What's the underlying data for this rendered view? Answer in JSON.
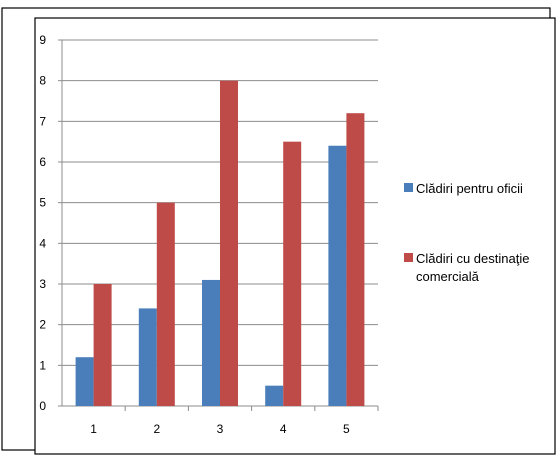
{
  "chart_data": {
    "type": "bar",
    "title": "",
    "xlabel": "",
    "ylabel": "",
    "categories": [
      "1",
      "2",
      "3",
      "4",
      "5"
    ],
    "series": [
      {
        "name": "Clădiri pentru oficii",
        "color": "#4a7ebb",
        "values": [
          1.2,
          2.4,
          3.1,
          0.5,
          6.4
        ]
      },
      {
        "name": "Clădiri cu destinaţie comercială",
        "color": "#be4b48",
        "values": [
          3,
          5,
          8,
          6.5,
          7.2
        ]
      }
    ],
    "ylim": [
      0,
      9
    ],
    "yticks": [
      "0",
      "1",
      "2",
      "3",
      "4",
      "5",
      "6",
      "7",
      "8",
      "9"
    ],
    "grid": true,
    "legend_position": "right",
    "legend_lines": [
      [
        "Clădiri pentru oficii"
      ],
      [
        "Clădiri cu destinaţie",
        "comercială"
      ]
    ]
  }
}
